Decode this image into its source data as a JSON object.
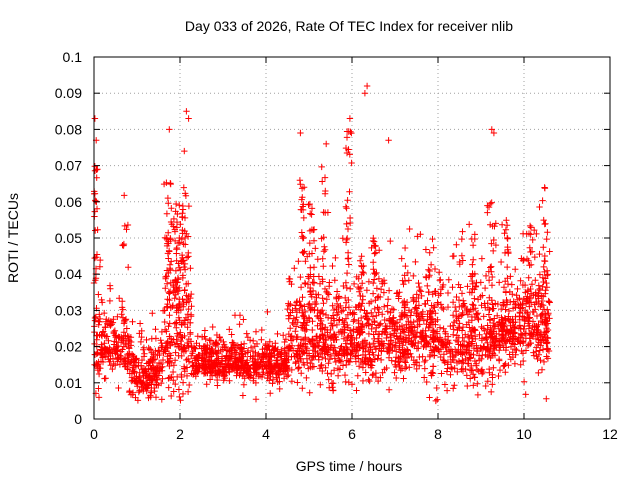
{
  "chart_data": {
    "type": "scatter",
    "title": "Day 033 of 2026, Rate Of TEC Index for receiver nlib",
    "xlabel": "GPS time / hours",
    "ylabel": "ROTI / TECUs",
    "xlim": [
      0,
      12
    ],
    "ylim": [
      0,
      0.1
    ],
    "xticks": [
      "0",
      "2",
      "4",
      "6",
      "8",
      "10",
      "12"
    ],
    "yticks": [
      "0",
      "0.01",
      "0.02",
      "0.03",
      "0.04",
      "0.05",
      "0.06",
      "0.07",
      "0.08",
      "0.09",
      "0.1"
    ],
    "grid": true,
    "marker": "+",
    "color": "#ff0000",
    "series": [
      {
        "name": "ROTI",
        "x_range": [
          0,
          10.6
        ],
        "note": "approximately 4000 points; baseline ~0.01-0.02, bursts near 0-0.1h, 1.7-2.2h, 4.6-6.4h, 7.5-10.6h",
        "highlighted_points": [
          {
            "x": 0.02,
            "y": 0.083
          },
          {
            "x": 0.05,
            "y": 0.077
          },
          {
            "x": 0.08,
            "y": 0.069
          },
          {
            "x": 1.75,
            "y": 0.08
          },
          {
            "x": 2.15,
            "y": 0.085
          },
          {
            "x": 2.2,
            "y": 0.083
          },
          {
            "x": 2.1,
            "y": 0.074
          },
          {
            "x": 4.8,
            "y": 0.079
          },
          {
            "x": 5.4,
            "y": 0.076
          },
          {
            "x": 5.95,
            "y": 0.083
          },
          {
            "x": 6.35,
            "y": 0.092
          },
          {
            "x": 6.3,
            "y": 0.09
          },
          {
            "x": 6.85,
            "y": 0.077
          },
          {
            "x": 9.25,
            "y": 0.08
          },
          {
            "x": 9.3,
            "y": 0.079
          },
          {
            "x": 7.95,
            "y": 0.005
          }
        ]
      }
    ]
  }
}
